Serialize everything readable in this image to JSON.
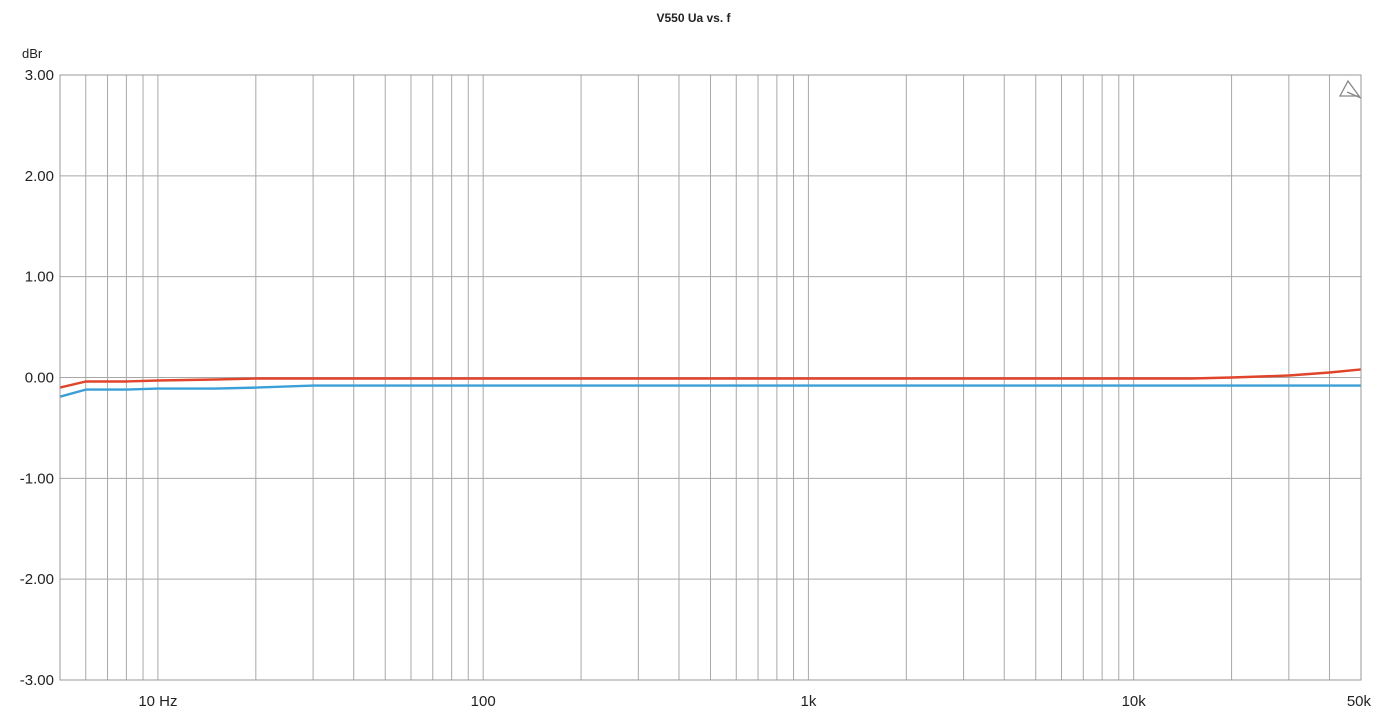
{
  "chart_data": {
    "type": "line",
    "title": "V550 Ua vs. f",
    "ylabel": "dBr",
    "xlabel": "",
    "xscale": "log",
    "xlim": [
      5,
      50000
    ],
    "ylim": [
      -3,
      3
    ],
    "grid": true,
    "y_ticks": [
      3,
      2,
      1,
      0,
      -1,
      -2,
      -3
    ],
    "y_tick_labels": [
      "3.00",
      "2.00",
      "1.00",
      "0.00",
      "-1.00",
      "-2.00",
      "-3.00"
    ],
    "x_ticks": [
      10,
      100,
      1000,
      10000,
      50000
    ],
    "x_tick_labels": [
      "10 Hz",
      "100",
      "1k",
      "10k",
      "50k"
    ],
    "series": [
      {
        "color": "#e0452b",
        "x": [
          5,
          6,
          8,
          10,
          15,
          20,
          30,
          50,
          100,
          150,
          200,
          300,
          500,
          1000,
          2000,
          5000,
          10000,
          15000,
          20000,
          30000,
          40000,
          50000
        ],
        "y": [
          -0.1,
          -0.04,
          -0.04,
          -0.03,
          -0.02,
          -0.01,
          -0.01,
          -0.01,
          -0.01,
          -0.01,
          -0.01,
          -0.01,
          -0.01,
          -0.01,
          -0.01,
          -0.01,
          -0.01,
          -0.01,
          0.0,
          0.02,
          0.05,
          0.08
        ]
      },
      {
        "color": "#3b9fd8",
        "x": [
          5,
          6,
          8,
          10,
          15,
          20,
          30,
          50,
          100,
          150,
          200,
          300,
          500,
          1000,
          2000,
          5000,
          10000,
          20000,
          50000
        ],
        "y": [
          -0.19,
          -0.12,
          -0.12,
          -0.11,
          -0.11,
          -0.1,
          -0.08,
          -0.08,
          -0.08,
          -0.08,
          -0.08,
          -0.08,
          -0.08,
          -0.08,
          -0.08,
          -0.08,
          -0.08,
          -0.08,
          -0.08
        ]
      }
    ]
  }
}
